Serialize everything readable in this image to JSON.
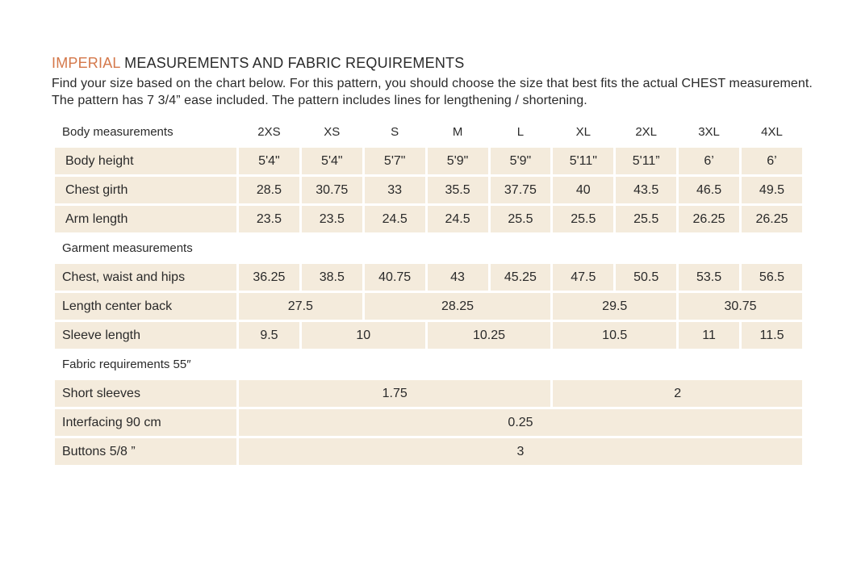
{
  "heading": {
    "accent": "IMPERIAL",
    "rest": " MEASUREMENTS AND FABRIC REQUIREMENTS"
  },
  "intro": "Find your size based on the chart below. For this pattern, you should choose the size that best fits the actual CHEST measurement. The pattern has 7 3/4” ease included. The pattern includes lines for lengthening / shortening.",
  "sizes": [
    "2XS",
    "XS",
    "S",
    "M",
    "L",
    "XL",
    "2XL",
    "3XL",
    "4XL"
  ],
  "body": {
    "title": "Body measurements",
    "rows": [
      {
        "label": "Body height",
        "values": [
          "5'4\"",
          "5'4\"",
          "5'7\"",
          "5'9\"",
          "5'9\"",
          "5'11\"",
          "5'11”",
          "6’",
          "6’"
        ]
      },
      {
        "label": "Chest girth",
        "values": [
          "28.5",
          "30.75",
          "33",
          "35.5",
          "37.75",
          "40",
          "43.5",
          "46.5",
          "49.5"
        ]
      },
      {
        "label": "Arm length",
        "values": [
          "23.5",
          "23.5",
          "24.5",
          "24.5",
          "25.5",
          "25.5",
          "25.5",
          "26.25",
          "26.25"
        ]
      }
    ]
  },
  "garment": {
    "title": "Garment measurements",
    "chest": {
      "label": "Chest, waist and hips",
      "values": [
        "36.25",
        "38.5",
        "40.75",
        "43",
        "45.25",
        "47.5",
        "50.5",
        "53.5",
        "56.5"
      ]
    },
    "length": {
      "label": "Length center back",
      "values": [
        "27.5",
        "28.25",
        "29.5",
        "30.75"
      ]
    },
    "sleeve": {
      "label": "Sleeve length",
      "values": [
        "9.5",
        "10",
        "10.25",
        "10.5",
        "11",
        "11.5"
      ]
    }
  },
  "fabric": {
    "title": "Fabric requirements 55″",
    "short": {
      "label": "Short sleeves",
      "values": [
        "1.75",
        "2"
      ]
    },
    "interfacing": {
      "label": "Interfacing 90 cm",
      "value": "0.25"
    },
    "buttons": {
      "label": "Buttons 5/8 ”",
      "value": "3"
    }
  }
}
